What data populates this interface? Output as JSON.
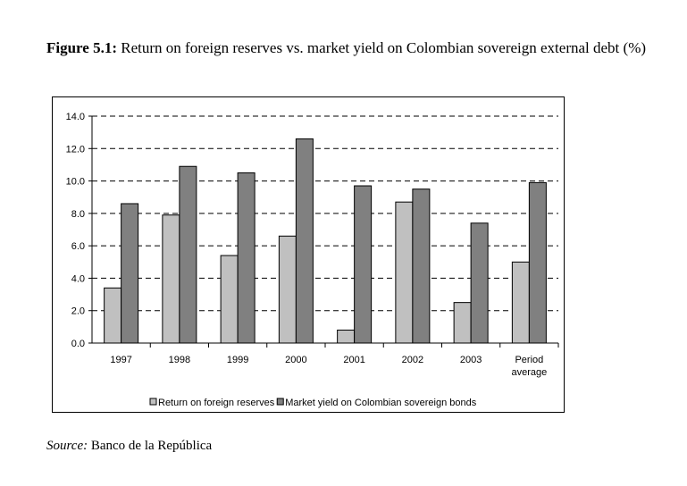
{
  "title": {
    "label": "Figure 5.1:",
    "text": " Return on foreign reserves vs. market yield on Colombian sovereign external debt (%)"
  },
  "source": {
    "label": "Source:",
    "text": " Banco de la República"
  },
  "colors": {
    "reserves": "#c0c0c0",
    "yield": "#808080"
  },
  "chart_data": {
    "type": "bar",
    "title": "Return on foreign reserves vs. market yield on Colombian sovereign external debt (%)",
    "categories": [
      "1997",
      "1998",
      "1999",
      "2000",
      "2001",
      "2002",
      "2003",
      "Period average"
    ],
    "series": [
      {
        "name": "Return on foreign reserves",
        "values": [
          3.4,
          7.9,
          5.4,
          6.6,
          0.8,
          8.7,
          2.5,
          5.0
        ]
      },
      {
        "name": "Market yield on Colombian sovereign bonds",
        "values": [
          8.6,
          10.9,
          10.5,
          12.6,
          9.7,
          9.5,
          7.4,
          9.9
        ]
      }
    ],
    "ylim": [
      0,
      14
    ],
    "yticks": [
      "0.0",
      "2.0",
      "4.0",
      "6.0",
      "8.0",
      "10.0",
      "12.0",
      "14.0"
    ],
    "grid": true,
    "legend": "bottom"
  }
}
